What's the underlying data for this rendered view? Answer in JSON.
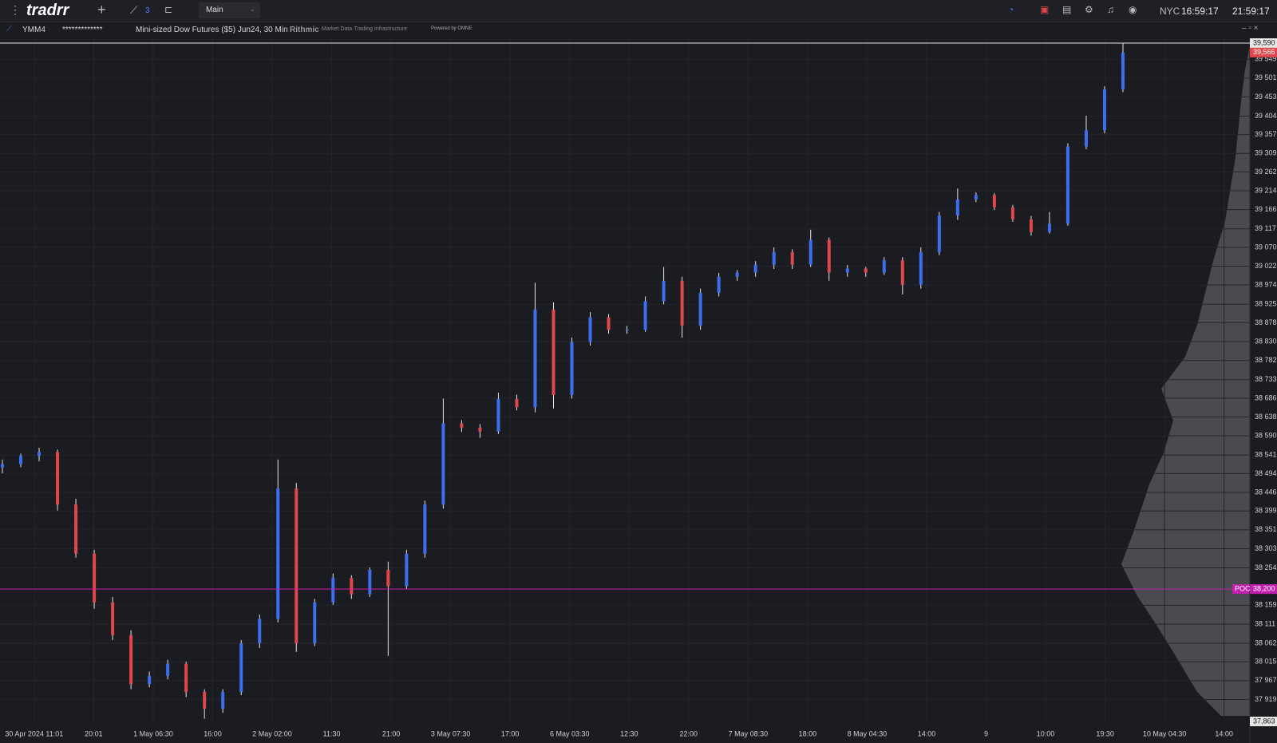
{
  "toolbar": {
    "logo": "tradrr",
    "chart_count": "3",
    "layout": "Main",
    "city": "NYC",
    "city_time": "16:59:17",
    "local_time": "21:59:17"
  },
  "legend": {
    "symbol": "YMM4",
    "account": "*************",
    "description": "Mini-sized Dow Futures ($5) Jun24, 30 Min",
    "provider": "Rithmic",
    "provider_tagline": "Market Data·Trading Infrastructure",
    "powered": "Powered by OMNE"
  },
  "chart_data": {
    "type": "candlestick",
    "series": [
      {
        "name": "YMM4",
        "up_color": "#3b6ff0",
        "down_color": "#e0474c",
        "wick_color": "#e6e6e6",
        "values": [
          [
            38510,
            38530,
            38495,
            38518
          ],
          [
            38518,
            38545,
            38510,
            38539
          ],
          [
            38539,
            38560,
            38525,
            38549
          ],
          [
            38549,
            38555,
            38400,
            38415
          ],
          [
            38415,
            38430,
            38280,
            38290
          ],
          [
            38290,
            38300,
            38150,
            38166
          ],
          [
            38166,
            38180,
            38070,
            38083
          ],
          [
            38083,
            38095,
            37945,
            37958
          ],
          [
            37958,
            37990,
            37950,
            37979
          ],
          [
            37979,
            38020,
            37970,
            38010
          ],
          [
            38010,
            38015,
            37925,
            37938
          ],
          [
            37938,
            37945,
            37870,
            37896
          ],
          [
            37896,
            37945,
            37885,
            37938
          ],
          [
            37938,
            38070,
            37930,
            38062
          ],
          [
            38062,
            38135,
            38050,
            38124
          ],
          [
            38124,
            38530,
            38115,
            38456
          ],
          [
            38456,
            38470,
            38040,
            38062
          ],
          [
            38062,
            38175,
            38055,
            38166
          ],
          [
            38166,
            38240,
            38160,
            38228
          ],
          [
            38228,
            38235,
            38175,
            38187
          ],
          [
            38187,
            38255,
            38180,
            38249
          ],
          [
            38249,
            38270,
            38030,
            38207
          ],
          [
            38207,
            38300,
            38200,
            38290
          ],
          [
            38290,
            38425,
            38280,
            38415
          ],
          [
            38415,
            38685,
            38405,
            38622
          ],
          [
            38622,
            38630,
            38600,
            38611
          ],
          [
            38611,
            38620,
            38585,
            38601
          ],
          [
            38601,
            38700,
            38595,
            38684
          ],
          [
            38684,
            38695,
            38655,
            38663
          ],
          [
            38663,
            38980,
            38650,
            38912
          ],
          [
            38912,
            38930,
            38660,
            38694
          ],
          [
            38694,
            38840,
            38685,
            38829
          ],
          [
            38829,
            38905,
            38820,
            38892
          ],
          [
            38892,
            38900,
            38850,
            38860
          ],
          [
            38860,
            38870,
            38850,
            38860
          ],
          [
            38860,
            38945,
            38855,
            38933
          ],
          [
            38933,
            39020,
            38925,
            38985
          ],
          [
            38985,
            38995,
            38840,
            38871
          ],
          [
            38871,
            38965,
            38860,
            38954
          ],
          [
            38954,
            39005,
            38945,
            38995
          ],
          [
            38995,
            39012,
            38985,
            39006
          ],
          [
            39006,
            39035,
            38995,
            39026
          ],
          [
            39026,
            39070,
            39015,
            39058
          ],
          [
            39058,
            39065,
            39015,
            39026
          ],
          [
            39026,
            39115,
            39020,
            39089
          ],
          [
            39089,
            39095,
            38985,
            39006
          ],
          [
            39006,
            39025,
            38995,
            39016
          ],
          [
            39016,
            39020,
            38995,
            39006
          ],
          [
            39006,
            39045,
            39000,
            39037
          ],
          [
            39037,
            39045,
            38950,
            38975
          ],
          [
            38975,
            39070,
            38965,
            39058
          ],
          [
            39058,
            39160,
            39050,
            39151
          ],
          [
            39151,
            39220,
            39140,
            39192
          ],
          [
            39192,
            39210,
            39185,
            39203
          ],
          [
            39203,
            39208,
            39165,
            39172
          ],
          [
            39172,
            39178,
            39135,
            39141
          ],
          [
            39141,
            39150,
            39100,
            39109
          ],
          [
            39109,
            39160,
            39105,
            39130
          ],
          [
            39130,
            39335,
            39125,
            39327
          ],
          [
            39327,
            39405,
            39320,
            39368
          ],
          [
            39368,
            39480,
            39360,
            39472
          ],
          [
            39472,
            39590,
            39465,
            39566
          ]
        ]
      }
    ],
    "ylim": [
      37863,
      39590
    ],
    "yticks": [
      {
        "value": 39549,
        "label": "39 549"
      },
      {
        "value": 39501,
        "label": "39 501"
      },
      {
        "value": 39453,
        "label": "39 453"
      },
      {
        "value": 39404,
        "label": "39 404"
      },
      {
        "value": 39357,
        "label": "39 357"
      },
      {
        "value": 39309,
        "label": "39 309"
      },
      {
        "value": 39262,
        "label": "39 262"
      },
      {
        "value": 39214,
        "label": "39 214"
      },
      {
        "value": 39166,
        "label": "39 166"
      },
      {
        "value": 39117,
        "label": "39 117"
      },
      {
        "value": 39070,
        "label": "39 070"
      },
      {
        "value": 39022,
        "label": "39 022"
      },
      {
        "value": 38974,
        "label": "38 974"
      },
      {
        "value": 38925,
        "label": "38 925"
      },
      {
        "value": 38878,
        "label": "38 878"
      },
      {
        "value": 38830,
        "label": "38 830"
      },
      {
        "value": 38782,
        "label": "38 782"
      },
      {
        "value": 38733,
        "label": "38 733"
      },
      {
        "value": 38686,
        "label": "38 686"
      },
      {
        "value": 38638,
        "label": "38 638"
      },
      {
        "value": 38590,
        "label": "38 590"
      },
      {
        "value": 38541,
        "label": "38 541"
      },
      {
        "value": 38494,
        "label": "38 494"
      },
      {
        "value": 38446,
        "label": "38 446"
      },
      {
        "value": 38399,
        "label": "38 399"
      },
      {
        "value": 38351,
        "label": "38 351"
      },
      {
        "value": 38303,
        "label": "38 303"
      },
      {
        "value": 38254,
        "label": "38 254"
      },
      {
        "value": 38159,
        "label": "38 159"
      },
      {
        "value": 38111,
        "label": "38 111"
      },
      {
        "value": 38062,
        "label": "38 062"
      },
      {
        "value": 38015,
        "label": "38 015"
      },
      {
        "value": 37967,
        "label": "37 967"
      },
      {
        "value": 37919,
        "label": "37 919"
      }
    ],
    "high_label": {
      "value": 39590,
      "label": "39,590"
    },
    "low_label": {
      "value": 37863,
      "label": "37,863"
    },
    "last_price": {
      "value": 39566,
      "label": "39,566",
      "color": "#e0474c"
    },
    "poc": {
      "name": "POC",
      "value": 38200,
      "label": "38,200",
      "color": "#c21fb0"
    },
    "time_labels": [
      "30 Apr 2024 11:01",
      "20:01",
      "1 May 06:30",
      "16:00",
      "2 May 02:00",
      "11:30",
      "21:00",
      "3 May 07:30",
      "17:00",
      "6 May 03:30",
      "12:30",
      "22:00",
      "7 May 08:30",
      "18:00",
      "8 May 04:30",
      "14:00",
      "9",
      "10:00",
      "19:30",
      "10 May 04:30",
      "14:00"
    ],
    "grid": true
  }
}
